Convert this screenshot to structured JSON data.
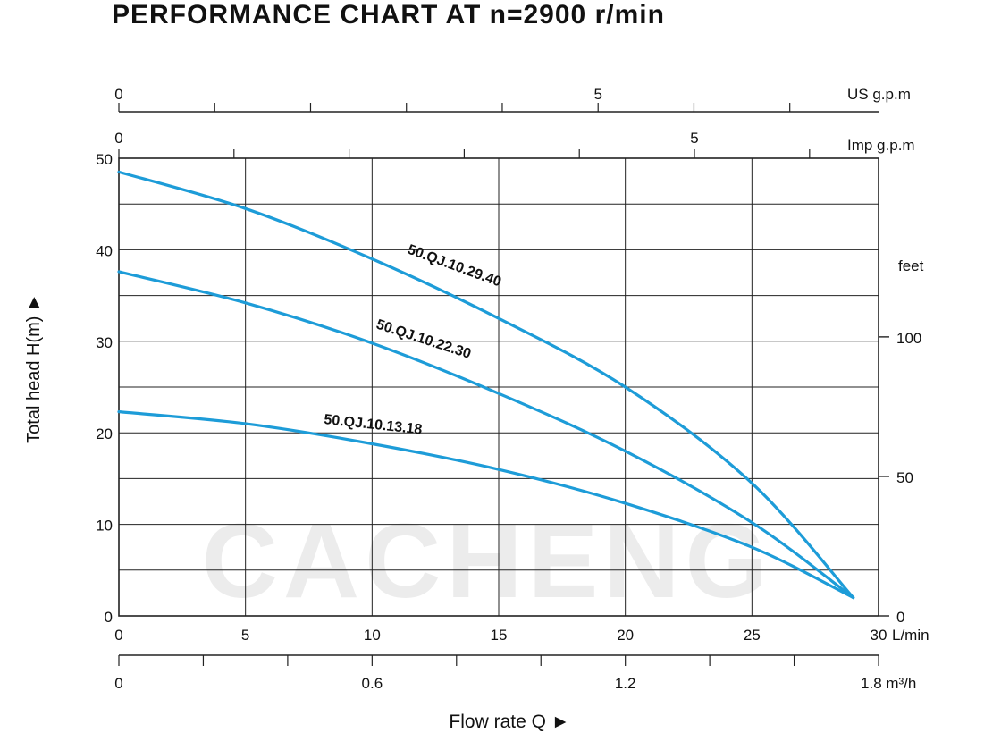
{
  "title": "PERFORMANCE CHART AT n=2900 r/min",
  "colors": {
    "curve": "#1d9cd8",
    "grid": "#222222",
    "watermark": "#ececec"
  },
  "watermark_text": "CACHENG",
  "chart_data": {
    "type": "line",
    "title": "PERFORMANCE CHART AT n=2900 r/min",
    "xlabel": "Flow rate  Q ►",
    "ylabel": "Total  head H(m) ►",
    "xlim": [
      0,
      30
    ],
    "ylim": [
      0,
      50
    ],
    "grid": true,
    "x_axis": {
      "ticks": [
        "0",
        "5",
        "10",
        "15",
        "20",
        "25",
        "30"
      ],
      "unit": "L/min"
    },
    "y_axis": {
      "ticks": [
        "0",
        "10",
        "20",
        "30",
        "40",
        "50"
      ]
    },
    "secondary_axes": {
      "us_gpm": {
        "unit": "US g.p.m",
        "labels": [
          {
            "text": "0",
            "value": 0
          },
          {
            "text": "5",
            "value": 5
          }
        ],
        "lpm_per_unit": 3.785
      },
      "imp_gpm": {
        "unit": "Imp g.p.m",
        "labels": [
          {
            "text": "0",
            "value": 0
          },
          {
            "text": "5",
            "value": 5
          }
        ],
        "lpm_per_unit": 4.546
      },
      "m3h": {
        "unit": "1.8 m³/h",
        "labels": [
          {
            "text": "0",
            "value": 0
          },
          {
            "text": "0.6",
            "value": 0.6
          },
          {
            "text": "1.2",
            "value": 1.2
          },
          {
            "text": "1.8",
            "value": 1.8
          }
        ],
        "lpm_per_unit": 16.667
      },
      "feet": {
        "unit": "feet",
        "labels": [
          {
            "text": "0",
            "value": 0
          },
          {
            "text": "50",
            "value": 50
          },
          {
            "text": "100",
            "value": 100
          }
        ],
        "m_per_unit": 0.3048
      }
    },
    "series": [
      {
        "name": "50.QJ.10.29.40",
        "x": [
          0,
          5,
          10,
          15,
          20,
          25,
          29
        ],
        "y": [
          48.5,
          44.5,
          39.0,
          32.5,
          25.0,
          14.5,
          2.0
        ]
      },
      {
        "name": "50.QJ.10.22.30",
        "x": [
          0,
          5,
          10,
          15,
          20,
          25,
          29
        ],
        "y": [
          37.6,
          34.2,
          29.8,
          24.3,
          18.0,
          10.2,
          2.0
        ]
      },
      {
        "name": "50.QJ.10.13.18",
        "x": [
          0,
          5,
          10,
          15,
          20,
          25,
          29
        ],
        "y": [
          22.3,
          21.0,
          18.8,
          16.0,
          12.3,
          7.5,
          2.0
        ]
      }
    ]
  }
}
